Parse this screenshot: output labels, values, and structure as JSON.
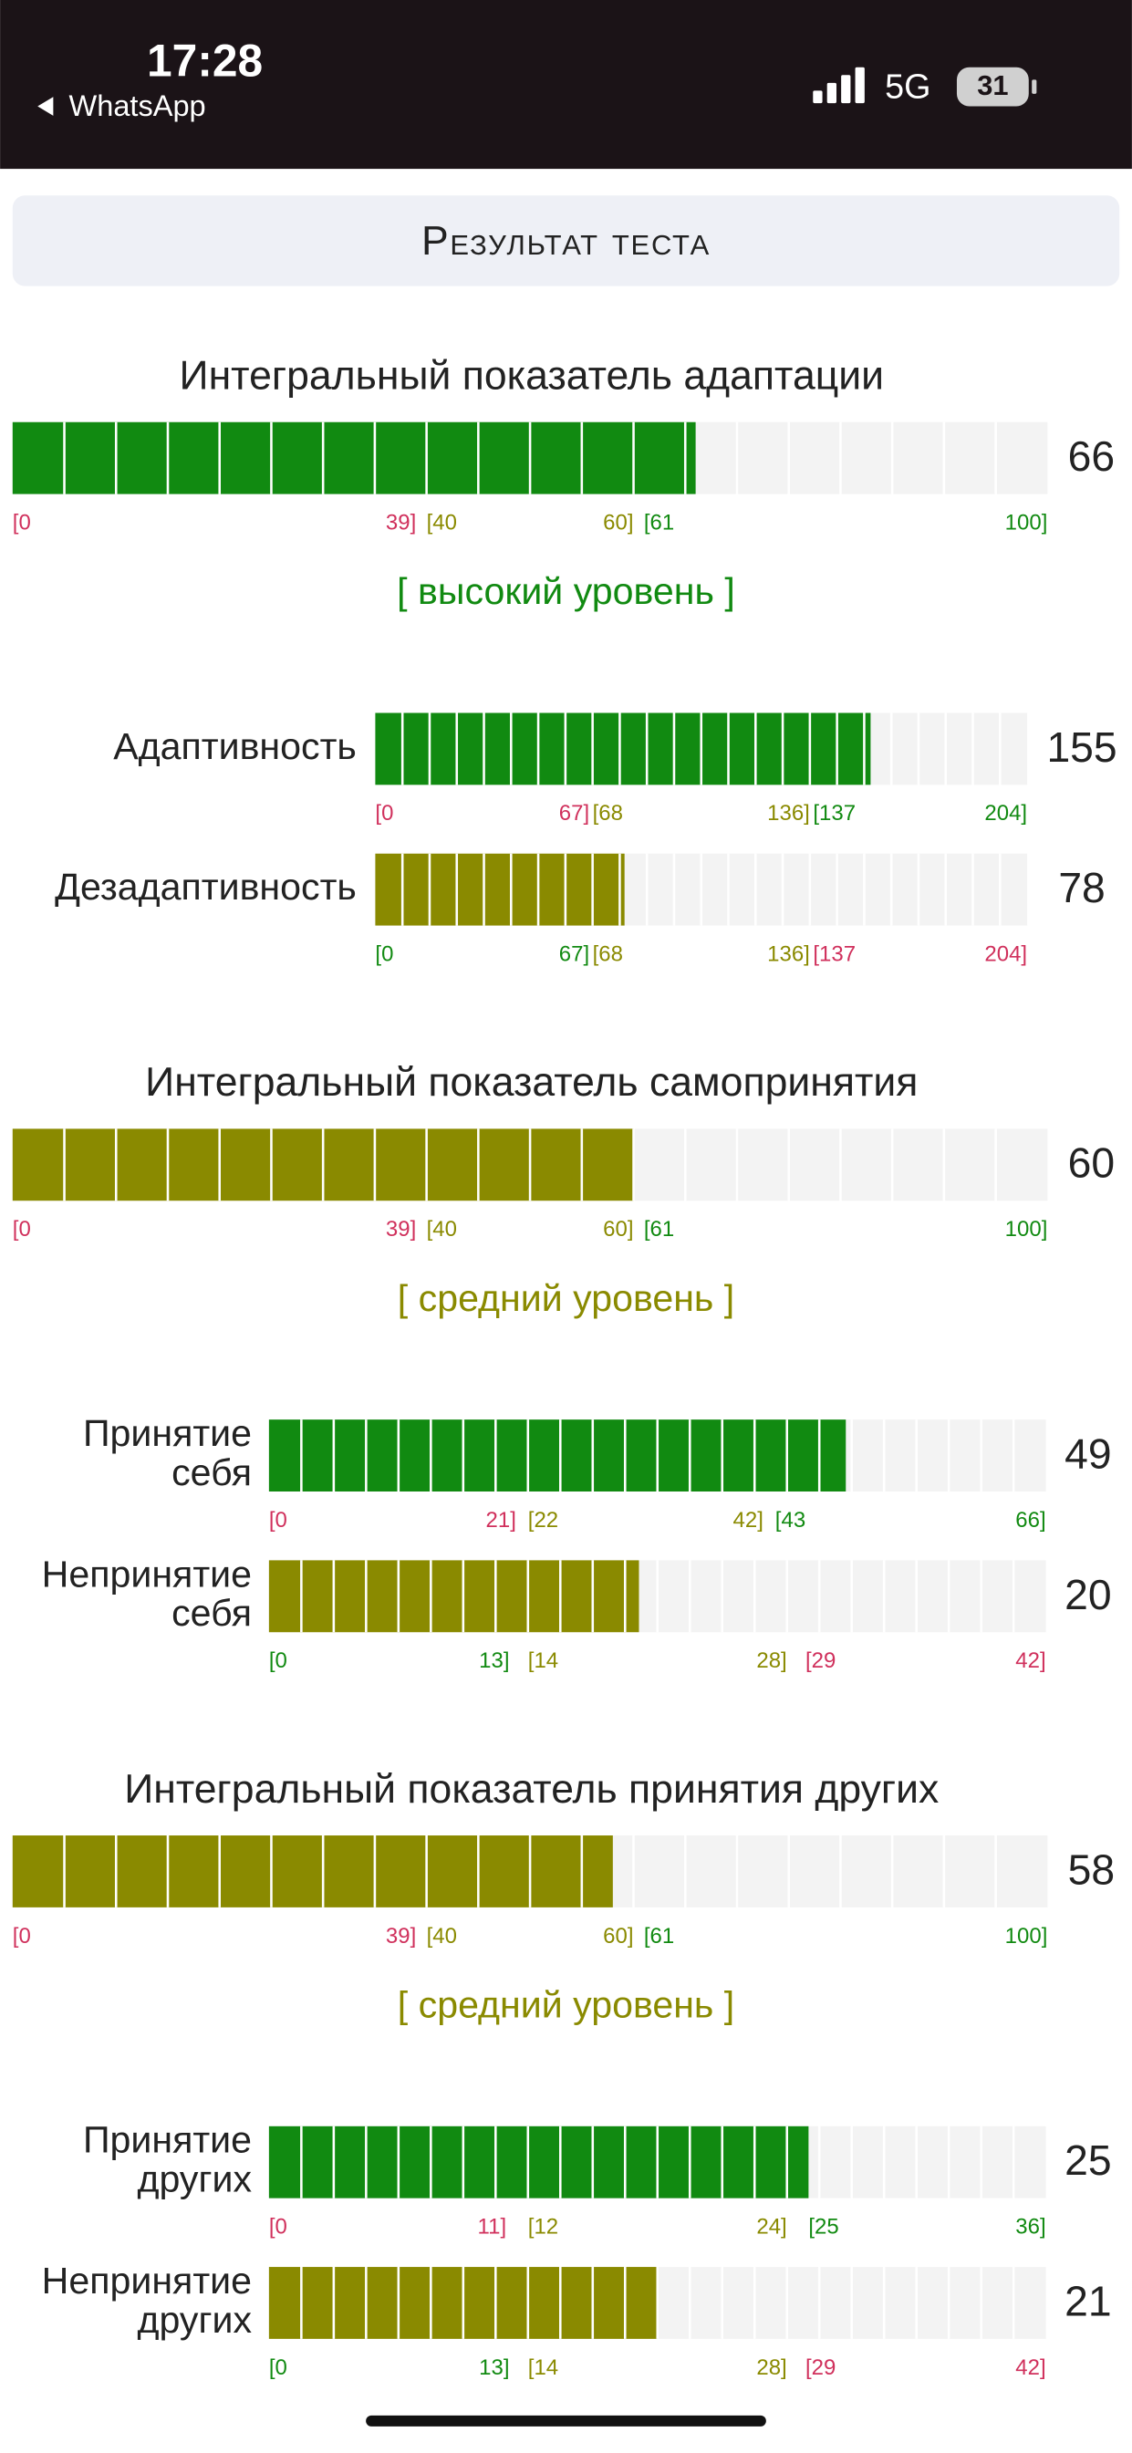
{
  "status_bar": {
    "time": "17:28",
    "back": "WhatsApp",
    "network": "5G",
    "battery": "31"
  },
  "header": {
    "title": "Результат теста"
  },
  "sections": [
    {
      "title": "Интегральный показатель адаптации",
      "score": {
        "value": 66,
        "zones": [
          {
            "lim": [
              0,
              39
            ],
            "labels": [
              "[0",
              "39]"
            ],
            "color": "#d0305c"
          },
          {
            "lim": [
              40,
              60
            ],
            "labels": [
              "[40",
              "60]"
            ],
            "color": "#8a8a00"
          },
          {
            "lim": [
              61,
              100
            ],
            "labels": [
              "[61",
              "100]"
            ],
            "color": "#118a11"
          }
        ]
      },
      "level": {
        "text": "[ высокий уровень ]",
        "color": "#118a11"
      },
      "subscales": [
        {
          "label": [
            "Адаптивность"
          ],
          "value": 155,
          "zones": [
            {
              "lim": [
                0,
                67
              ],
              "labels": [
                "[0",
                "67]"
              ],
              "color": "#d0305c"
            },
            {
              "lim": [
                68,
                136
              ],
              "labels": [
                "[68",
                "136]"
              ],
              "color": "#8a8a00"
            },
            {
              "lim": [
                137,
                204
              ],
              "labels": [
                "[137",
                "204]"
              ],
              "color": "#118a11"
            }
          ]
        },
        {
          "label": [
            "Дезадаптивность"
          ],
          "value": 78,
          "zones": [
            {
              "lim": [
                0,
                67
              ],
              "labels": [
                "[0",
                "67]"
              ],
              "color": "#118a11"
            },
            {
              "lim": [
                68,
                136
              ],
              "labels": [
                "[68",
                "136]"
              ],
              "color": "#8a8a00"
            },
            {
              "lim": [
                137,
                204
              ],
              "labels": [
                "[137",
                "204]"
              ],
              "color": "#d0305c"
            }
          ]
        }
      ]
    },
    {
      "title": "Интегральный показатель самопринятия",
      "score": {
        "value": 60,
        "zones": [
          {
            "lim": [
              0,
              39
            ],
            "labels": [
              "[0",
              "39]"
            ],
            "color": "#d0305c"
          },
          {
            "lim": [
              40,
              60
            ],
            "labels": [
              "[40",
              "60]"
            ],
            "color": "#8a8a00"
          },
          {
            "lim": [
              61,
              100
            ],
            "labels": [
              "[61",
              "100]"
            ],
            "color": "#118a11"
          }
        ]
      },
      "level": {
        "text": "[ средний уровень ]",
        "color": "#8a8a00"
      },
      "subscales": [
        {
          "label": [
            "Принятие",
            "себя"
          ],
          "value": 49,
          "zones": [
            {
              "lim": [
                0,
                21
              ],
              "labels": [
                "[0",
                "21]"
              ],
              "color": "#d0305c"
            },
            {
              "lim": [
                22,
                42
              ],
              "labels": [
                "[22",
                "42]"
              ],
              "color": "#8a8a00"
            },
            {
              "lim": [
                43,
                66
              ],
              "labels": [
                "[43",
                "66]"
              ],
              "color": "#118a11"
            }
          ]
        },
        {
          "label": [
            "Непринятие",
            "себя"
          ],
          "value": 20,
          "zones": [
            {
              "lim": [
                0,
                13
              ],
              "labels": [
                "[0",
                "13]"
              ],
              "color": "#118a11"
            },
            {
              "lim": [
                14,
                28
              ],
              "labels": [
                "[14",
                "28]"
              ],
              "color": "#8a8a00"
            },
            {
              "lim": [
                29,
                42
              ],
              "labels": [
                "[29",
                "42]"
              ],
              "color": "#d0305c"
            }
          ]
        }
      ]
    },
    {
      "title": "Интегральный показатель принятия других",
      "score": {
        "value": 58,
        "zones": [
          {
            "lim": [
              0,
              39
            ],
            "labels": [
              "[0",
              "39]"
            ],
            "color": "#d0305c"
          },
          {
            "lim": [
              40,
              60
            ],
            "labels": [
              "[40",
              "60]"
            ],
            "color": "#8a8a00"
          },
          {
            "lim": [
              61,
              100
            ],
            "labels": [
              "[61",
              "100]"
            ],
            "color": "#118a11"
          }
        ]
      },
      "level": {
        "text": "[ средний уровень ]",
        "color": "#8a8a00"
      },
      "subscales": [
        {
          "label": [
            "Принятие",
            "других"
          ],
          "value": 25,
          "zones": [
            {
              "lim": [
                0,
                11
              ],
              "labels": [
                "[0",
                "11]"
              ],
              "color": "#d0305c"
            },
            {
              "lim": [
                12,
                24
              ],
              "labels": [
                "[12",
                "24]"
              ],
              "color": "#8a8a00"
            },
            {
              "lim": [
                25,
                36
              ],
              "labels": [
                "[25",
                "36]"
              ],
              "color": "#118a11"
            }
          ]
        },
        {
          "label": [
            "Непринятие",
            "других"
          ],
          "value": 21,
          "zones": [
            {
              "lim": [
                0,
                13
              ],
              "labels": [
                "[0",
                "13]"
              ],
              "color": "#118a11"
            },
            {
              "lim": [
                14,
                28
              ],
              "labels": [
                "[14",
                "28]"
              ],
              "color": "#8a8a00"
            },
            {
              "lim": [
                29,
                42
              ],
              "labels": [
                "[29",
                "42]"
              ],
              "color": "#d0305c"
            }
          ]
        }
      ]
    }
  ]
}
